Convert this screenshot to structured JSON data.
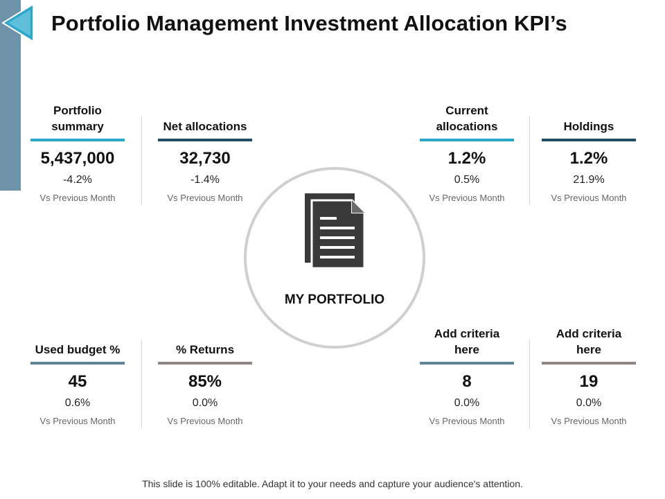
{
  "slide": {
    "title": "Portfolio Management Investment Allocation KPI’s",
    "footer": "This slide is 100% editable. Adapt it to your needs and capture your audience's attention."
  },
  "center": {
    "label": "MY PORTFOLIO",
    "icon": "document-icon"
  },
  "colors": {
    "accent_blue": "#2aa8cc",
    "accent_navy": "#1f4e63",
    "accent_slate": "#5f8497",
    "accent_gray": "#8f8683",
    "side_bar": "#6e93a8"
  },
  "kpis": [
    {
      "label": "Portfolio summary",
      "value": "5,437,000",
      "change": "-4.2%",
      "caption": "Vs Previous Month",
      "color": "#2aa8cc"
    },
    {
      "label": "Net allocations",
      "value": "32,730",
      "change": "-1.4%",
      "caption": "Vs Previous Month",
      "color": "#1f4e63"
    },
    {
      "label": "Current allocations",
      "value": "1.2%",
      "change": "0.5%",
      "caption": "Vs Previous Month",
      "color": "#2aa8cc"
    },
    {
      "label": "Holdings",
      "value": "1.2%",
      "change": "21.9%",
      "caption": "Vs Previous Month",
      "color": "#1f4e63"
    },
    {
      "label": "Used budget %",
      "value": "45",
      "change": "0.6%",
      "caption": "Vs Previous Month",
      "color": "#5f8497"
    },
    {
      "label": "% Returns",
      "value": "85%",
      "change": "0.0%",
      "caption": "Vs Previous Month",
      "color": "#8f8683"
    },
    {
      "label": "Add criteria here",
      "value": "8",
      "change": "0.0%",
      "caption": "Vs Previous Month",
      "color": "#5f8497"
    },
    {
      "label": "Add criteria here",
      "value": "19",
      "change": "0.0%",
      "caption": "Vs Previous Month",
      "color": "#8f8683"
    }
  ]
}
